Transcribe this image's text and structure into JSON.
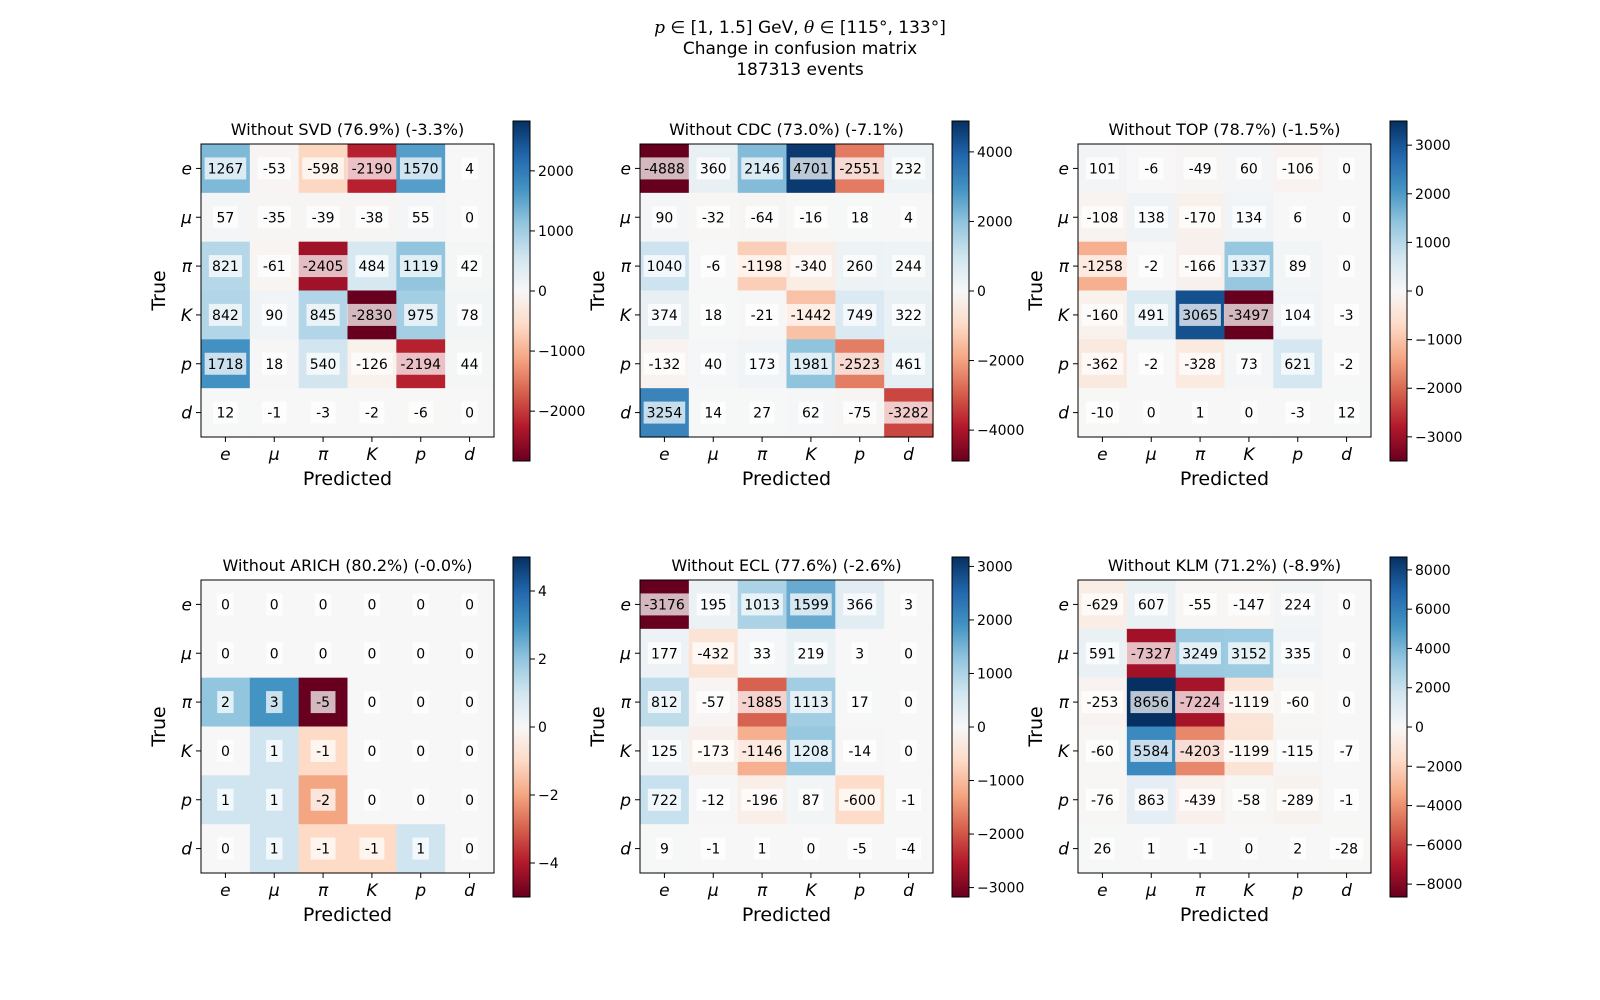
{
  "figure": {
    "suptitle_line1_a": "p",
    "suptitle_line1_b": " ∈ [1, 1.5] GeV, ",
    "suptitle_line1_c": "θ",
    "suptitle_line1_d": " ∈ [115°, 133°]",
    "suptitle_line2": "Change in confusion matrix",
    "suptitle_line3": "187313 events"
  },
  "colormap": "RdBu",
  "chart_data": [
    {
      "type": "heatmap",
      "title": "Without SVD (76.9%) (-3.3%)",
      "xlabel": "Predicted",
      "ylabel": "True",
      "x_categories": [
        "e",
        "μ",
        "π",
        "K",
        "p",
        "d"
      ],
      "y_categories": [
        "e",
        "μ",
        "π",
        "K",
        "p",
        "d"
      ],
      "values": [
        [
          1267,
          -53,
          -598,
          -2190,
          1570,
          4
        ],
        [
          57,
          -35,
          -39,
          -38,
          55,
          0
        ],
        [
          821,
          -61,
          -2405,
          484,
          1119,
          42
        ],
        [
          842,
          90,
          845,
          -2830,
          975,
          78
        ],
        [
          1718,
          18,
          540,
          -126,
          -2194,
          44
        ],
        [
          12,
          -1,
          -3,
          -2,
          -6,
          0
        ]
      ],
      "vmin": -2830,
      "vmax": 2830,
      "colorbar_ticks": [
        -2000,
        -1000,
        0,
        1000,
        2000
      ],
      "colorbar_labels": [
        "−2000",
        "−1000",
        "0",
        "1000",
        "2000"
      ]
    },
    {
      "type": "heatmap",
      "title": "Without CDC (73.0%) (-7.1%)",
      "xlabel": "Predicted",
      "ylabel": "True",
      "x_categories": [
        "e",
        "μ",
        "π",
        "K",
        "p",
        "d"
      ],
      "y_categories": [
        "e",
        "μ",
        "π",
        "K",
        "p",
        "d"
      ],
      "values": [
        [
          -4888,
          360,
          2146,
          4701,
          -2551,
          232
        ],
        [
          90,
          -32,
          -64,
          -16,
          18,
          4
        ],
        [
          1040,
          -6,
          -1198,
          -340,
          260,
          244
        ],
        [
          374,
          18,
          -21,
          -1442,
          749,
          322
        ],
        [
          -132,
          40,
          173,
          1981,
          -2523,
          461
        ],
        [
          3254,
          14,
          27,
          62,
          -75,
          -3282
        ]
      ],
      "vmin": -4888,
      "vmax": 4888,
      "colorbar_ticks": [
        -4000,
        -2000,
        0,
        2000,
        4000
      ],
      "colorbar_labels": [
        "−4000",
        "−2000",
        "0",
        "2000",
        "4000"
      ]
    },
    {
      "type": "heatmap",
      "title": "Without TOP (78.7%) (-1.5%)",
      "xlabel": "Predicted",
      "ylabel": "True",
      "x_categories": [
        "e",
        "μ",
        "π",
        "K",
        "p",
        "d"
      ],
      "y_categories": [
        "e",
        "μ",
        "π",
        "K",
        "p",
        "d"
      ],
      "values": [
        [
          101,
          -6,
          -49,
          60,
          -106,
          0
        ],
        [
          -108,
          138,
          -170,
          134,
          6,
          0
        ],
        [
          -1258,
          -2,
          -166,
          1337,
          89,
          0
        ],
        [
          -160,
          491,
          3065,
          -3497,
          104,
          -3
        ],
        [
          -362,
          -2,
          -328,
          73,
          621,
          -2
        ],
        [
          -10,
          0,
          1,
          0,
          -3,
          12
        ]
      ],
      "vmin": -3497,
      "vmax": 3497,
      "colorbar_ticks": [
        -3000,
        -2000,
        -1000,
        0,
        1000,
        2000,
        3000
      ],
      "colorbar_labels": [
        "−3000",
        "−2000",
        "−1000",
        "0",
        "1000",
        "2000",
        "3000"
      ]
    },
    {
      "type": "heatmap",
      "title": "Without ARICH (80.2%) (-0.0%)",
      "xlabel": "Predicted",
      "ylabel": "True",
      "x_categories": [
        "e",
        "μ",
        "π",
        "K",
        "p",
        "d"
      ],
      "y_categories": [
        "e",
        "μ",
        "π",
        "K",
        "p",
        "d"
      ],
      "values": [
        [
          0,
          0,
          0,
          0,
          0,
          0
        ],
        [
          0,
          0,
          0,
          0,
          0,
          0
        ],
        [
          2,
          3,
          -5,
          0,
          0,
          0
        ],
        [
          0,
          1,
          -1,
          0,
          0,
          0
        ],
        [
          1,
          1,
          -2,
          0,
          0,
          0
        ],
        [
          0,
          1,
          -1,
          -1,
          1,
          0
        ]
      ],
      "vmin": -5,
      "vmax": 5,
      "colorbar_ticks": [
        -4,
        -2,
        0,
        2,
        4
      ],
      "colorbar_labels": [
        "−4",
        "−2",
        "0",
        "2",
        "4"
      ]
    },
    {
      "type": "heatmap",
      "title": "Without ECL (77.6%) (-2.6%)",
      "xlabel": "Predicted",
      "ylabel": "True",
      "x_categories": [
        "e",
        "μ",
        "π",
        "K",
        "p",
        "d"
      ],
      "y_categories": [
        "e",
        "μ",
        "π",
        "K",
        "p",
        "d"
      ],
      "values": [
        [
          -3176,
          195,
          1013,
          1599,
          366,
          3
        ],
        [
          177,
          -432,
          33,
          219,
          3,
          0
        ],
        [
          812,
          -57,
          -1885,
          1113,
          17,
          0
        ],
        [
          125,
          -173,
          -1146,
          1208,
          -14,
          0
        ],
        [
          722,
          -12,
          -196,
          87,
          -600,
          -1
        ],
        [
          9,
          -1,
          1,
          0,
          -5,
          -4
        ]
      ],
      "vmin": -3176,
      "vmax": 3176,
      "colorbar_ticks": [
        -3000,
        -2000,
        -1000,
        0,
        1000,
        2000,
        3000
      ],
      "colorbar_labels": [
        "−3000",
        "−2000",
        "−1000",
        "0",
        "1000",
        "2000",
        "3000"
      ]
    },
    {
      "type": "heatmap",
      "title": "Without KLM (71.2%) (-8.9%)",
      "xlabel": "Predicted",
      "ylabel": "True",
      "x_categories": [
        "e",
        "μ",
        "π",
        "K",
        "p",
        "d"
      ],
      "y_categories": [
        "e",
        "μ",
        "π",
        "K",
        "p",
        "d"
      ],
      "values": [
        [
          -629,
          607,
          -55,
          -147,
          224,
          0
        ],
        [
          591,
          -7327,
          3249,
          3152,
          335,
          0
        ],
        [
          -253,
          8656,
          -7224,
          -1119,
          -60,
          0
        ],
        [
          -60,
          5584,
          -4203,
          -1199,
          -115,
          -7
        ],
        [
          -76,
          863,
          -439,
          -58,
          -289,
          -1
        ],
        [
          26,
          1,
          -1,
          0,
          2,
          -28
        ]
      ],
      "vmin": -8656,
      "vmax": 8656,
      "colorbar_ticks": [
        -8000,
        -6000,
        -4000,
        -2000,
        0,
        2000,
        4000,
        6000,
        8000
      ],
      "colorbar_labels": [
        "−8000",
        "−6000",
        "−4000",
        "−2000",
        "0",
        "2000",
        "4000",
        "6000",
        "8000"
      ]
    }
  ]
}
